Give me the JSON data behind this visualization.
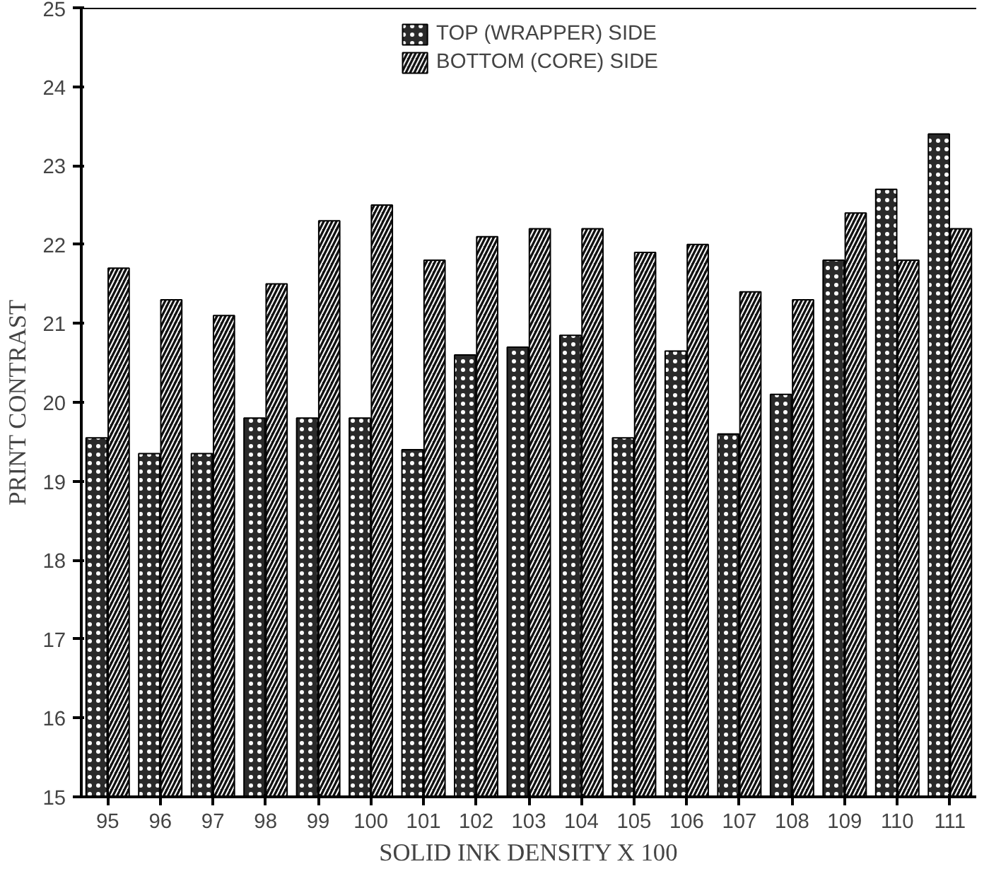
{
  "chart_data": {
    "type": "bar",
    "xlabel": "SOLID INK DENSITY X 100",
    "ylabel": "PRINT CONTRAST",
    "categories": [
      "95",
      "96",
      "97",
      "98",
      "99",
      "100",
      "101",
      "102",
      "103",
      "104",
      "105",
      "106",
      "107",
      "108",
      "109",
      "110",
      "111"
    ],
    "series": [
      {
        "name": "TOP (WRAPPER) SIDE",
        "color": "#2a2a2a",
        "values": [
          19.55,
          19.35,
          19.35,
          19.8,
          19.8,
          19.8,
          19.4,
          20.6,
          20.7,
          20.85,
          19.55,
          20.65,
          19.6,
          20.1,
          21.8,
          22.7,
          23.4
        ]
      },
      {
        "name": "BOTTOM (CORE) SIDE",
        "color": "#111111",
        "values": [
          21.7,
          21.3,
          21.1,
          21.5,
          22.3,
          22.5,
          21.8,
          22.1,
          22.2,
          22.2,
          21.9,
          22.0,
          21.4,
          21.3,
          22.4,
          21.8,
          22.2
        ]
      }
    ],
    "ylim": [
      15,
      25
    ],
    "yticks": [
      15,
      16,
      17,
      18,
      19,
      20,
      21,
      22,
      23,
      24,
      25
    ],
    "grid": false,
    "legend": "top"
  }
}
